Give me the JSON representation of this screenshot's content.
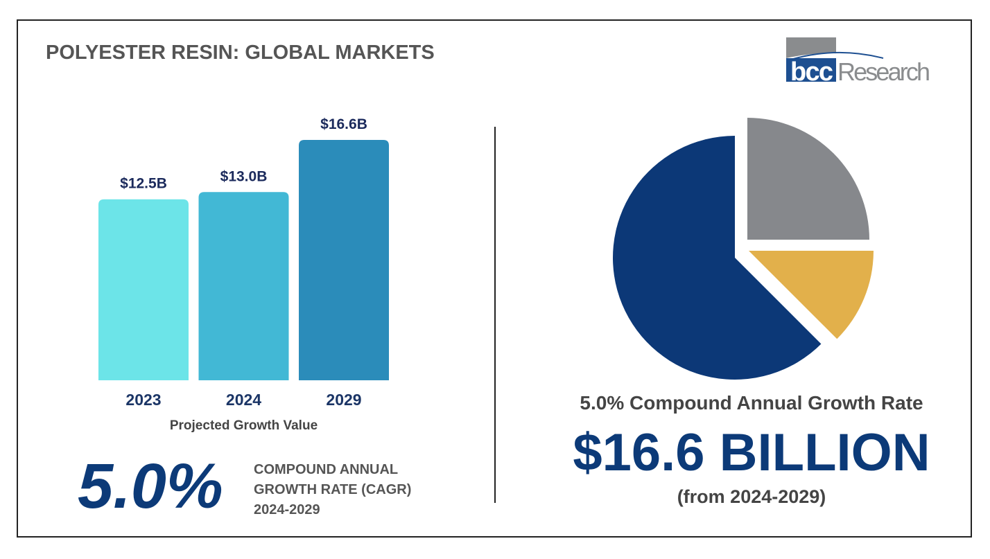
{
  "title": "POLYESTER RESIN: GLOBAL MARKETS",
  "logo": {
    "text": "bccResearch",
    "colors": {
      "blue": "#1d4f91",
      "gray": "#8a8c8e"
    }
  },
  "chart_data": [
    {
      "type": "bar",
      "categories": [
        "2023",
        "2024",
        "2029"
      ],
      "values": [
        12.5,
        13.0,
        16.6
      ],
      "data_labels": [
        "$12.5B",
        "$13.0B",
        "$16.6B"
      ],
      "xlabel": "Projected Growth Value",
      "ylabel": "",
      "ylim": [
        0,
        16.6
      ],
      "grid": false,
      "colors": [
        "#6ce4e8",
        "#42b8d5",
        "#2b8cba"
      ],
      "label_color": "#1b2a5c"
    },
    {
      "type": "pie",
      "values": [
        25,
        12.5,
        62.5
      ],
      "colors": [
        "#86888c",
        "#e2b04b",
        "#0c3877"
      ],
      "exploded": true
    }
  ],
  "cagr": {
    "value": "5.0%",
    "line1": "COMPOUND ANNUAL",
    "line2": "GROWTH RATE (CAGR)",
    "line3": "2024-2029"
  },
  "summary": {
    "growth": "5.0% Compound Annual Growth Rate",
    "value": "$16.6 BILLION",
    "range": "(from 2024-2029)"
  }
}
